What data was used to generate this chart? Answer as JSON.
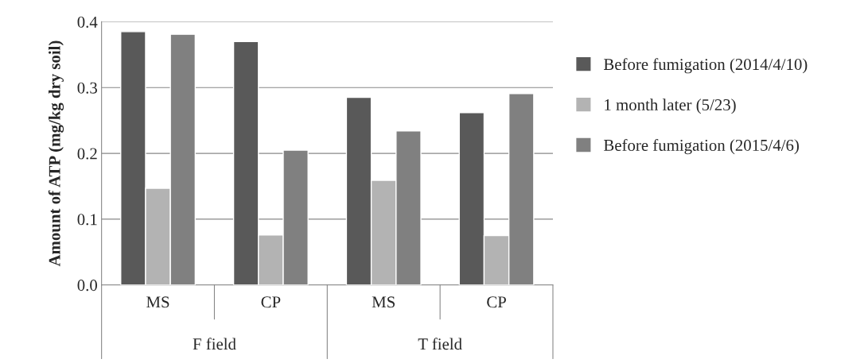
{
  "chart_data": {
    "type": "bar",
    "ylabel": "Amount of ATP (mg/kg dry soil)",
    "categories": [
      "MS",
      "CP",
      "MS",
      "CP"
    ],
    "series": [
      {
        "name": "Before fumigation (2014/4/10)",
        "color": "#595959",
        "values": [
          0.385,
          0.37,
          0.285,
          0.262
        ]
      },
      {
        "name": "1 month later (5/23)",
        "color": "#b3b3b3",
        "values": [
          0.147,
          0.076,
          0.159,
          0.075
        ]
      },
      {
        "name": "Before fumigation (2015/4/6)",
        "color": "#808080",
        "values": [
          0.381,
          0.205,
          0.234,
          0.291
        ]
      }
    ],
    "annotations": [
      "F field",
      "T field"
    ],
    "ylim": [
      0,
      0.4
    ],
    "yticks": [
      {
        "value": 0,
        "label": "0.0"
      },
      0.1,
      0.2,
      0.3,
      {
        "value": 0.4,
        "label": "0.4"
      }
    ],
    "grid": "y",
    "legend": "right"
  }
}
